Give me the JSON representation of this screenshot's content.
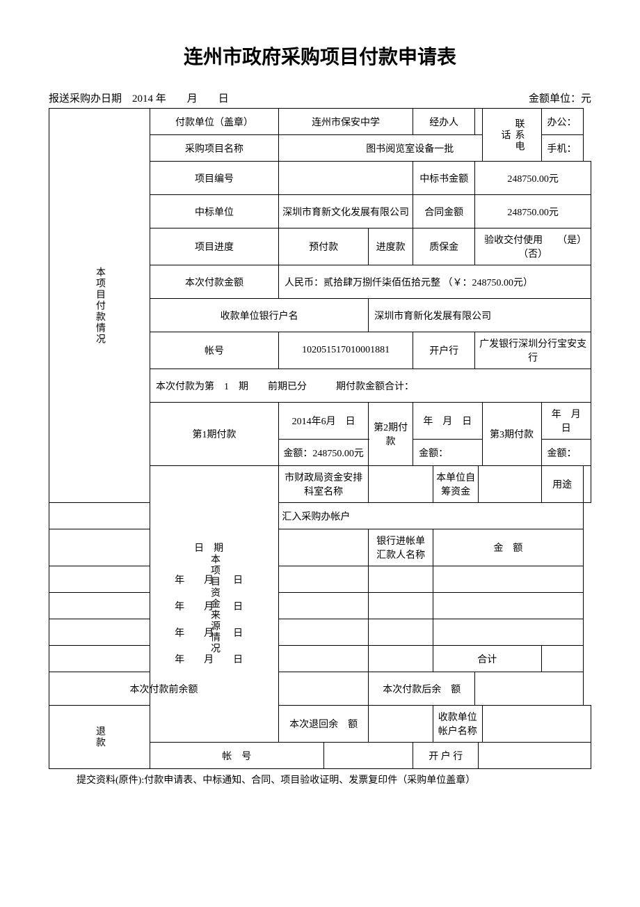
{
  "title": "连州市政府采购项目付款申请表",
  "header": {
    "submit_date_label": "报送采购办日期",
    "submit_date_value": "2014 年　　月　　日",
    "amount_unit": "金额单位：元"
  },
  "section1": {
    "label": "本项目付款情况",
    "payer_unit_label": "付款单位（盖章）",
    "payer_unit_value": "连州市保安中学",
    "handler_label": "经办人",
    "handler_value": "",
    "contact_label": "联系电话",
    "office_label": "办公：",
    "project_name_label": "采购项目名称",
    "project_name_value": "图书阅览室设备一批",
    "mobile_label": "手机：",
    "project_no_label": "项目编号",
    "project_no_value": "",
    "bid_amount_label": "中标书金额",
    "bid_amount_value": "248750.00元",
    "winner_label": "中标单位",
    "winner_value": "深圳市育新文化发展有限公司",
    "contract_amount_label": "合同金额",
    "contract_amount_value": "248750.00元",
    "progress_label": "项目进度",
    "prepay_label": "预付款",
    "progress_pay_label": "进度款",
    "quality_deposit_label": "质保金",
    "acceptance_label": "验收交付使用　　（是）　（否）",
    "this_pay_amount_label": "本次付款金额",
    "this_pay_amount_value": "人民币：贰拾肆万捌仟柒佰伍拾元整 （￥：248750.00元）",
    "payee_bank_name_label": "收款单位银行户名",
    "payee_bank_name_value": "深圳市育新化发展有限公司",
    "account_no_label": "帐号",
    "account_no_value": "102051517010001881",
    "bank_label": "开户行",
    "bank_value": "广发银行深圳分行宝安支行",
    "installment_text": "本次付款为第　1　期　　前期已分　　　期付款金额合计：",
    "p1_label": "第1期付款",
    "p1_date": "2014年6月　日",
    "p1_amount": "金额：248750.00元",
    "p2_label": "第2期付款",
    "p2_date": "年　月　日",
    "p2_amount": "金额：",
    "p3_label": "第3期付款",
    "p3_date": "年　月　日",
    "p3_amount": "金额："
  },
  "section2": {
    "label": "本项目资金来源情况",
    "finance_dept_label": "市财政局资金安排科室名称",
    "self_fund_label": "本单位自筹资金",
    "usage_label": "用途",
    "transfer_header": "汇入采购办帐户",
    "date_label": "日　期",
    "bank_slip_label": "银行进帐单汇款人名称",
    "amount_label": "金　额",
    "date_row": "年　　月　　日",
    "total_label": "合计",
    "balance_before_label": "本次付款前余额",
    "balance_after_label": "本次付款后余　额"
  },
  "section3": {
    "label": "退款",
    "refund_balance_label": "本次退回余　额",
    "payee_account_name_label": "收款单位帐户名称",
    "account_no_label": "帐　号",
    "bank_label": "开 户 行"
  },
  "footer": "提交资料(原件):付款申请表、中标通知、合同、项目验收证明、发票复印件（采购单位盖章）"
}
